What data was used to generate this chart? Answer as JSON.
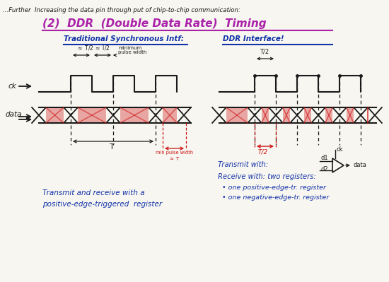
{
  "bg_color": "#f8f6f0",
  "title_line1": "...Further  Increasing the data pin through put of chip-to-chip communication:",
  "title_line2": "(2)  DDR  (Double Data Rate)  Timing",
  "left_header": "Traditional Synchronous Intf:",
  "right_header": "DDR Interface!",
  "left_subtext1": "Transmit and receive with a",
  "left_subtext2": "positive-edge-triggered  register",
  "right_subtext1": "Transmit with:",
  "right_subtext2": "Receive with: two registers:",
  "right_subtext3": "  • one positive-edge-tr. register",
  "right_subtext4": "  • one negative-edge-tr. register",
  "black": "#1a1a1a",
  "blue": "#2244aa",
  "purple": "#aa22aa",
  "red": "#cc1111",
  "dark_blue": "#1133aa"
}
